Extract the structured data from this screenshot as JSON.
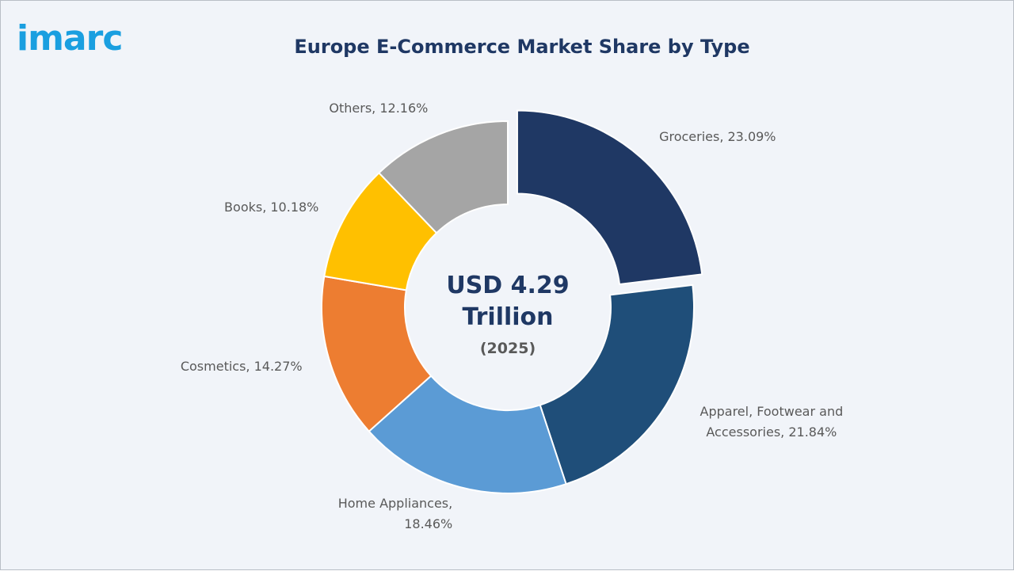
{
  "logo": "imarc",
  "chart_data": {
    "type": "pie",
    "donut": true,
    "title": "Europe E-Commerce Market Share by Type",
    "center_label": "USD 4.29 Trillion",
    "center_sublabel": "(2025)",
    "values": [
      23.09,
      21.84,
      18.46,
      14.27,
      10.18,
      12.16
    ],
    "value_labels": [
      "Groceries, 23.09%",
      "Apparel, Footwear and Accessories, 21.84%",
      "Home Appliances, 18.46%",
      "Cosmetics, 14.27%",
      "Books, 10.18%",
      "Others, 12.16%"
    ],
    "colors": [
      "#1f3864",
      "#1f4e79",
      "#5b9bd5",
      "#ed7d31",
      "#ffc000",
      "#a5a5a5"
    ],
    "exploded": [
      0
    ]
  }
}
